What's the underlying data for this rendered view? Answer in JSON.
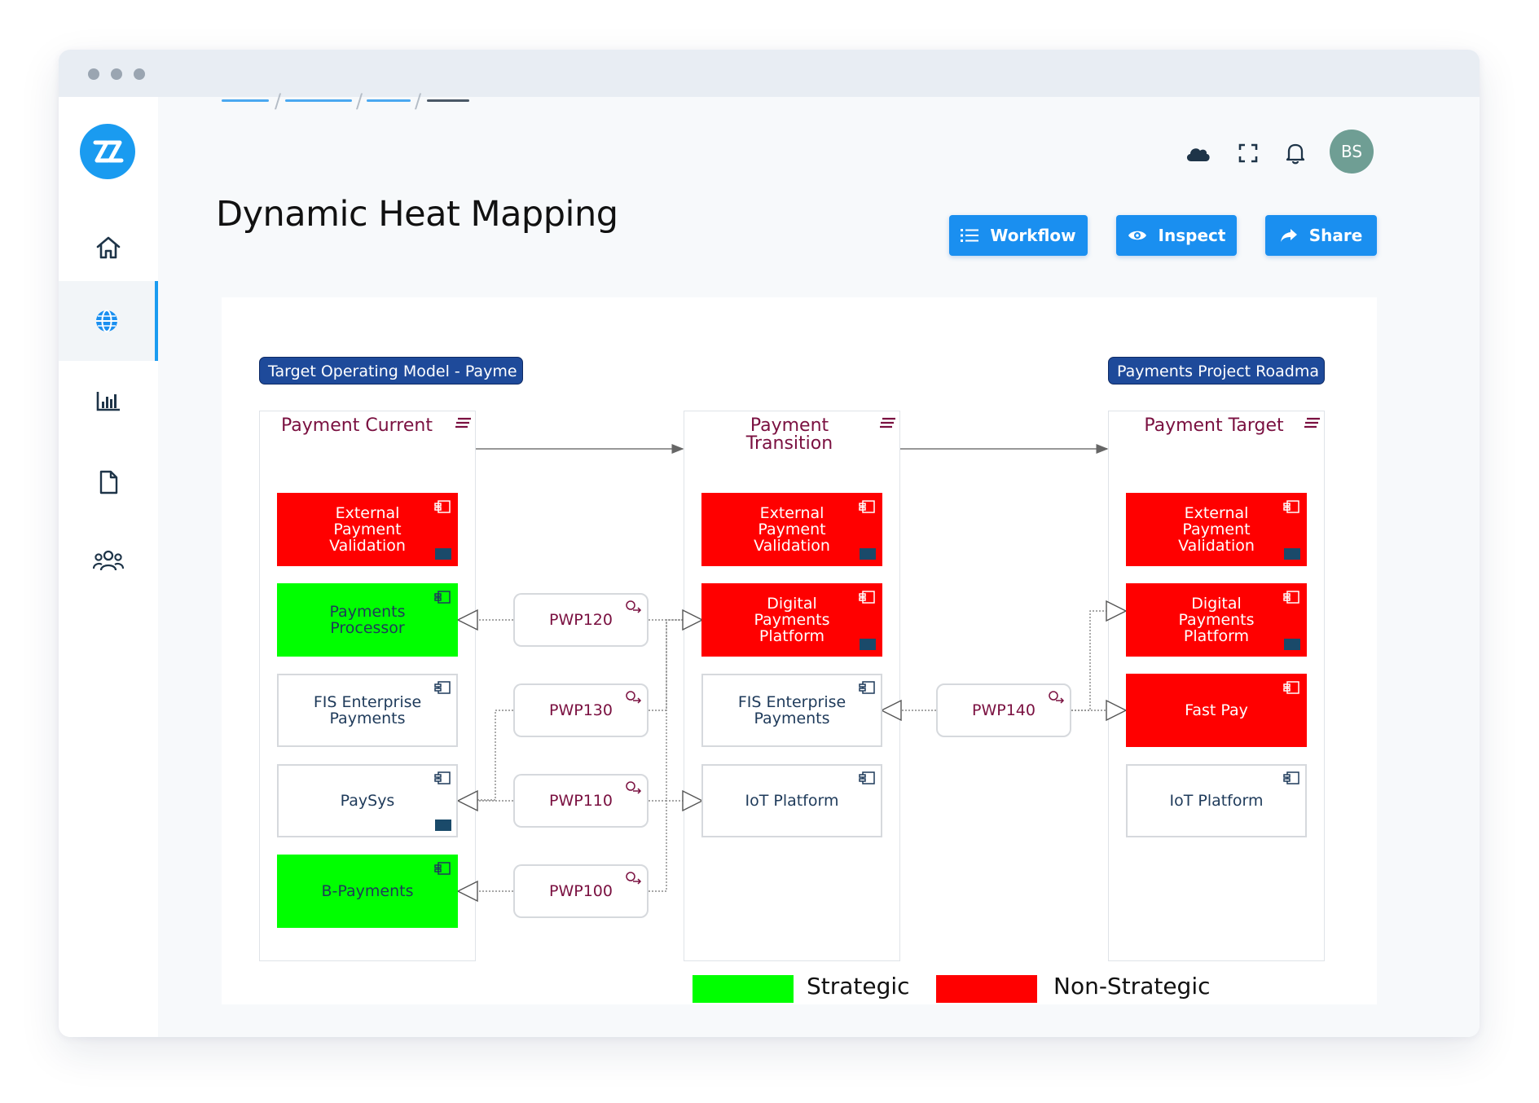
{
  "page": {
    "title": "Dynamic Heat Mapping"
  },
  "user": {
    "initials": "BS"
  },
  "actions": {
    "workflow": "Workflow",
    "inspect": "Inspect",
    "share": "Share"
  },
  "nav": {
    "items": [
      {
        "icon": "home-icon",
        "active": false
      },
      {
        "icon": "globe-icon",
        "active": true
      },
      {
        "icon": "bar-chart-icon",
        "active": false
      },
      {
        "icon": "document-icon",
        "active": false
      },
      {
        "icon": "users-icon",
        "active": false
      }
    ]
  },
  "header_icons": [
    "cloud-icon",
    "fullscreen-icon",
    "bell-icon"
  ],
  "diagram": {
    "left_tag": "Target Operating Model - Payme",
    "right_tag": "Payments Project Roadma",
    "groups": {
      "current": "Payment Current",
      "transition_line1": "Payment",
      "transition_line2": "Transition",
      "target": "Payment Target"
    },
    "current": [
      {
        "label": "External Payment Validation",
        "status": "non-strategic"
      },
      {
        "label": "Payments Processor",
        "status": "strategic"
      },
      {
        "label": "FIS Enterprise Payments",
        "status": "none"
      },
      {
        "label": "PaySys",
        "status": "none"
      },
      {
        "label": "B-Payments",
        "status": "strategic"
      }
    ],
    "transition": [
      {
        "label": "External Payment Validation",
        "status": "non-strategic"
      },
      {
        "label": "Digital Payments Platform",
        "status": "non-strategic"
      },
      {
        "label": "FIS Enterprise Payments",
        "status": "none"
      },
      {
        "label": "IoT Platform",
        "status": "none"
      }
    ],
    "target": [
      {
        "label": "External Payment Validation",
        "status": "non-strategic"
      },
      {
        "label": "Digital Payments Platform",
        "status": "non-strategic"
      },
      {
        "label": "Fast Pay",
        "status": "non-strategic"
      },
      {
        "label": "IoT Platform",
        "status": "none"
      }
    ],
    "work_packages": [
      "PWP120",
      "PWP130",
      "PWP110",
      "PWP100",
      "PWP140"
    ]
  },
  "legend": {
    "strategic": "Strategic",
    "non_strategic": "Non-Strategic",
    "strategic_color": "#00ff00",
    "non_strategic_color": "#ff0000"
  },
  "colors": {
    "accent": "#1a8ff0",
    "tag": "#1e4a9a",
    "group_title": "#7a1040"
  }
}
